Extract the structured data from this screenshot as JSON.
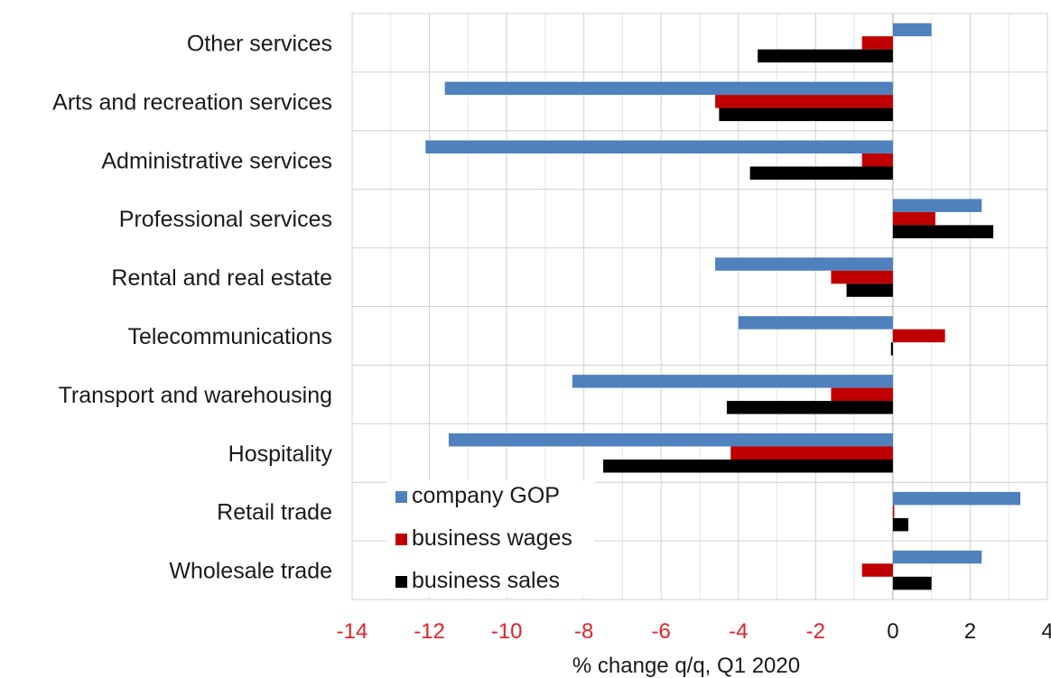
{
  "chart_data": {
    "type": "bar",
    "orientation": "horizontal",
    "categories": [
      "Other services",
      "Arts and recreation services",
      "Administrative services",
      "Professional services",
      "Rental and real estate",
      "Telecommunications",
      "Transport and warehousing",
      "Hospitality",
      "Retail trade",
      "Wholesale trade"
    ],
    "series": [
      {
        "name": "company GOP",
        "color": "#4f81bd",
        "values": [
          1.0,
          -11.6,
          -12.1,
          2.3,
          -4.6,
          -4.0,
          -8.3,
          -11.5,
          3.3,
          2.3
        ]
      },
      {
        "name": "business wages",
        "color": "#c00000",
        "values": [
          -0.8,
          -4.6,
          -0.8,
          1.1,
          -1.6,
          1.35,
          -1.6,
          -4.2,
          0.0,
          -0.8
        ]
      },
      {
        "name": "business sales",
        "color": "#000000",
        "values": [
          -3.5,
          -4.5,
          -3.7,
          2.6,
          -1.2,
          -0.05,
          -4.3,
          -7.5,
          0.4,
          1.0
        ]
      }
    ],
    "xlabel": "% change q/q, Q1 2020",
    "xlim": [
      -14,
      4
    ],
    "xticks": [
      -14,
      -12,
      -10,
      -8,
      -6,
      -4,
      -2,
      0,
      2,
      4
    ],
    "negative_tick_color": "#e8202a",
    "positive_tick_color": "#1a1a1a",
    "grid": true,
    "legend_position": "bottom-left"
  }
}
